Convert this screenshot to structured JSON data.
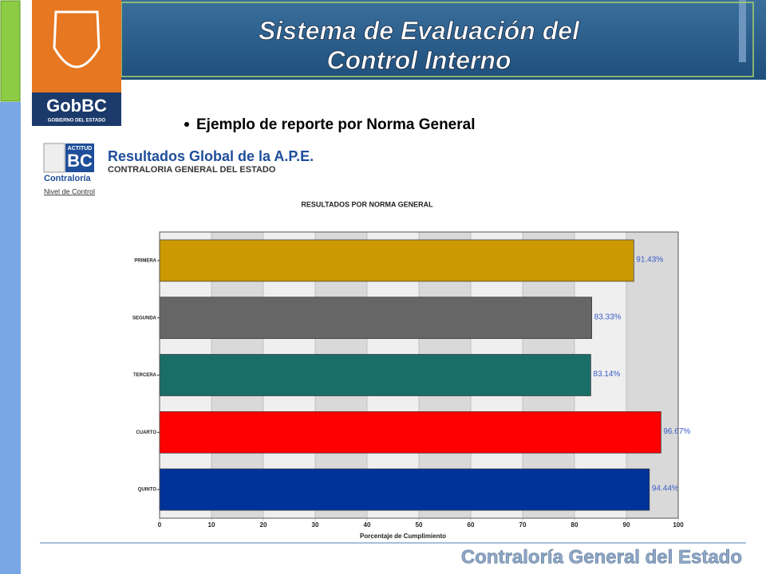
{
  "slide": {
    "title": [
      "Sistema de Evaluación del",
      "Control Interno"
    ],
    "logo": {
      "name": "GobBC",
      "subtitle": "GOBIERNO DEL ESTADO"
    },
    "bullet": "Ejemplo de reporte por Norma General",
    "report": {
      "title": "Resultados Global de la A.P.E.",
      "subtitle": "CONTRALORIA GENERAL DEL ESTADO",
      "badge": [
        "ACTITUD",
        "BC",
        "Contraloría"
      ],
      "link": "Nivel de Control"
    },
    "footer": "Contraloría General del Estado"
  },
  "chart_data": {
    "type": "hbar",
    "title": "RESULTADOS POR NORMA GENERAL",
    "categories": [
      "PRIMERA",
      "SEGUNDA",
      "TERCERA",
      "CUARTO",
      "QUINTO"
    ],
    "values": [
      91.43,
      83.33,
      83.14,
      96.67,
      94.44
    ],
    "value_labels": [
      "91.43%",
      "83.33%",
      "83.14%",
      "96.67%",
      "94.44%"
    ],
    "colors": [
      "#cc9900",
      "#666666",
      "#1a6e68",
      "#ff0000",
      "#003399"
    ],
    "xlabel": "Porcentaje de Cumplimiento",
    "xlim": [
      0,
      100
    ],
    "xticks": [
      0,
      10,
      20,
      30,
      40,
      50,
      60,
      70,
      80,
      90,
      100
    ],
    "grid": true
  }
}
